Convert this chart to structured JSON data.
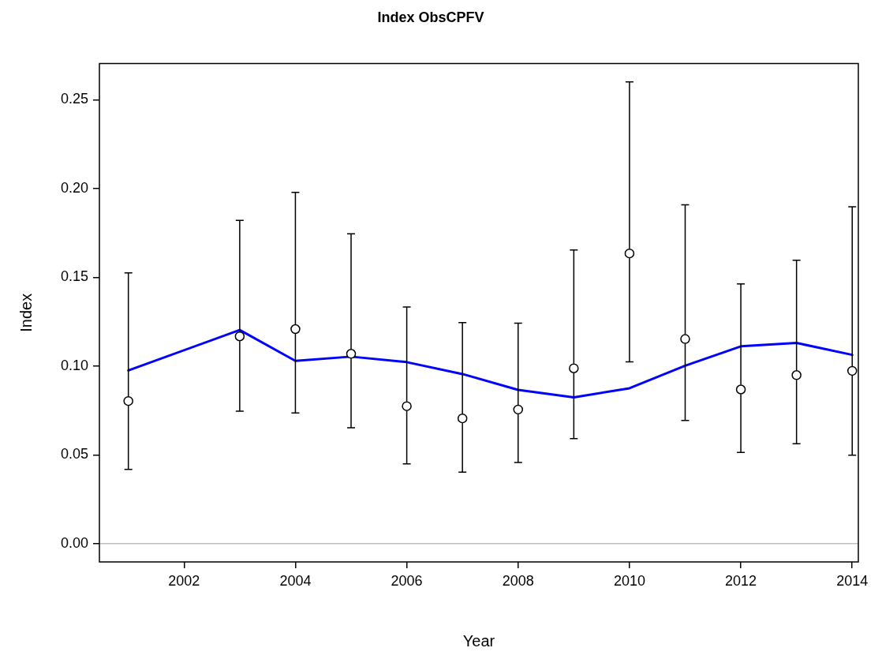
{
  "chart_data": {
    "type": "scatter",
    "title": "Index ObsCPFV",
    "xlabel": "Year",
    "ylabel": "Index",
    "xlim": [
      2000.48,
      2014.11
    ],
    "xticks": [
      2002,
      2004,
      2006,
      2008,
      2010,
      2012,
      2014
    ],
    "ylim": [
      -0.0103,
      0.2703
    ],
    "yticks": [
      {
        "value": 0,
        "label": "0.00"
      },
      {
        "value": 0.05,
        "label": "0.05"
      },
      {
        "value": 0.1,
        "label": "0.10"
      },
      {
        "value": 0.15,
        "label": "0.15"
      },
      {
        "value": 0.2,
        "label": "0.20"
      },
      {
        "value": 0.25,
        "label": "0.25"
      }
    ],
    "grid": false,
    "legend": false,
    "marker": "circle",
    "ref_lines": [
      {
        "axis": "y",
        "value": 0,
        "color": "#bebebe"
      }
    ],
    "series": [
      {
        "type": "line",
        "color": "#0000ff",
        "marker": "none",
        "x": [
          2001,
          2003,
          2004,
          2005,
          2006,
          2007,
          2008,
          2009,
          2010,
          2011,
          2012,
          2013,
          2014
        ],
        "values": [
          0.0975,
          0.1203,
          0.1029,
          0.1053,
          0.1022,
          0.0955,
          0.0866,
          0.0824,
          0.0875,
          0.1002,
          0.1111,
          0.113,
          0.1063
        ]
      },
      {
        "color": "#000000",
        "x": [
          2001,
          2003,
          2004,
          2005,
          2006,
          2007,
          2008,
          2009,
          2010,
          2011,
          2012,
          2013,
          2014
        ],
        "values": [
          0.0803,
          0.1167,
          0.1208,
          0.1069,
          0.0774,
          0.0705,
          0.0755,
          0.0987,
          0.1634,
          0.1152,
          0.0868,
          0.0949,
          0.0973
        ],
        "errors": [
          [
            0.0418,
            0.1525
          ],
          [
            0.0746,
            0.182
          ],
          [
            0.0736,
            0.1978
          ],
          [
            0.0652,
            0.1745
          ],
          [
            0.0449,
            0.1332
          ],
          [
            0.0402,
            0.1245
          ],
          [
            0.0457,
            0.1241
          ],
          [
            0.0591,
            0.1654
          ],
          [
            0.1024,
            0.26
          ],
          [
            0.0694,
            0.1908
          ],
          [
            0.0514,
            0.1462
          ],
          [
            0.0563,
            0.1596
          ],
          [
            0.0498,
            0.1897
          ]
        ]
      }
    ]
  }
}
